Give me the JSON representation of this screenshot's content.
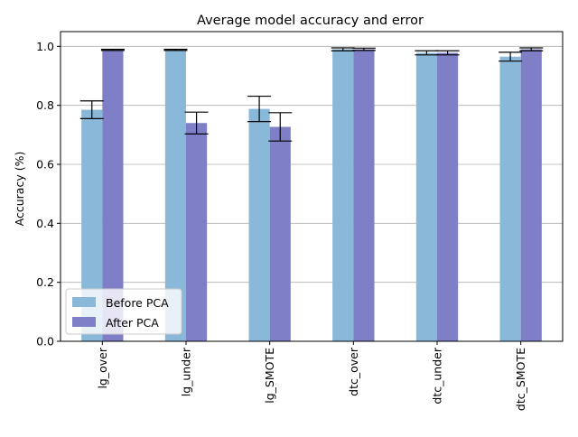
{
  "chart_data": {
    "type": "bar",
    "title": "Average model accuracy and error",
    "xlabel": "",
    "ylabel": "Accuracy (%)",
    "ylim": [
      0,
      1.05
    ],
    "yticks": [
      0.0,
      0.2,
      0.4,
      0.6,
      0.8,
      1.0
    ],
    "ytick_labels": [
      "0.0",
      "0.2",
      "0.4",
      "0.6",
      "0.8",
      "1.0"
    ],
    "grid": "horizontal",
    "legend_position": "lower-left",
    "categories": [
      "lg_over",
      "lg_under",
      "lg_SMOTE",
      "dtc_over",
      "dtc_under",
      "dtc_SMOTE"
    ],
    "series": [
      {
        "name": "Before PCA",
        "color": "#8ab8d9",
        "values": [
          0.785,
          0.988,
          0.788,
          0.99,
          0.978,
          0.965
        ],
        "errors": [
          0.03,
          0.002,
          0.043,
          0.005,
          0.007,
          0.015
        ]
      },
      {
        "name": "After PCA",
        "color": "#7f7fc8",
        "values": [
          0.988,
          0.74,
          0.727,
          0.99,
          0.978,
          0.99
        ],
        "errors": [
          0.002,
          0.037,
          0.048,
          0.004,
          0.007,
          0.005
        ]
      }
    ]
  }
}
